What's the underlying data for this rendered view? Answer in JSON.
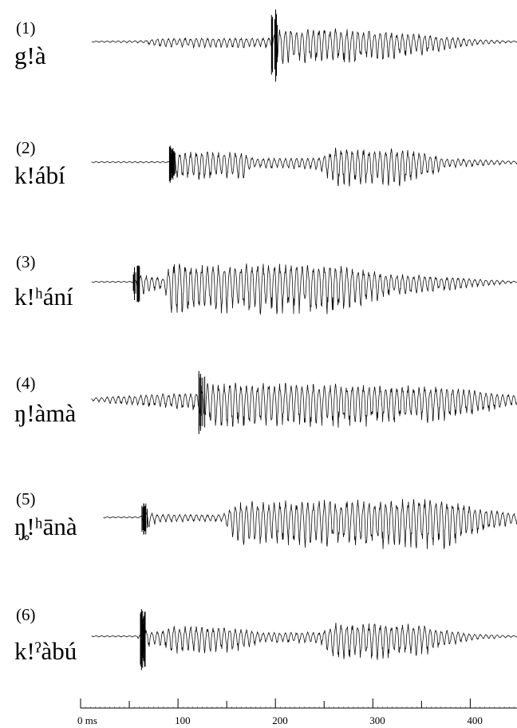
{
  "rows": [
    {
      "number": "(1)",
      "word": "g!à"
    },
    {
      "number": "(2)",
      "word": "k!ábí"
    },
    {
      "number": "(3)",
      "word": "k!ʰání"
    },
    {
      "number": "(4)",
      "word": "ŋ!àmà"
    },
    {
      "number": "(5)",
      "word": "ŋ̥!ʰānà"
    },
    {
      "number": "(6)",
      "word": "k!ˀàbú"
    }
  ],
  "time_axis": {
    "xlim": [
      0,
      448
    ],
    "ticks": [
      {
        "value": 0,
        "label": "0 ms"
      },
      100,
      200,
      300,
      400
    ],
    "minor_ticks": [
      50,
      150,
      250,
      350
    ]
  }
}
